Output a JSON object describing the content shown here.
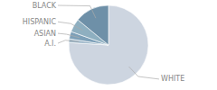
{
  "chart_data": {
    "type": "pie",
    "categories": [
      "WHITE",
      "A.I.",
      "ASIAN",
      "HISPANIC",
      "BLACK"
    ],
    "values": [
      76,
      1.5,
      3.0,
      5.5,
      14
    ],
    "colors": [
      "#cdd5e0",
      "#9ab5c8",
      "#7da0b8",
      "#8eafc0",
      "#6e90a8"
    ]
  }
}
